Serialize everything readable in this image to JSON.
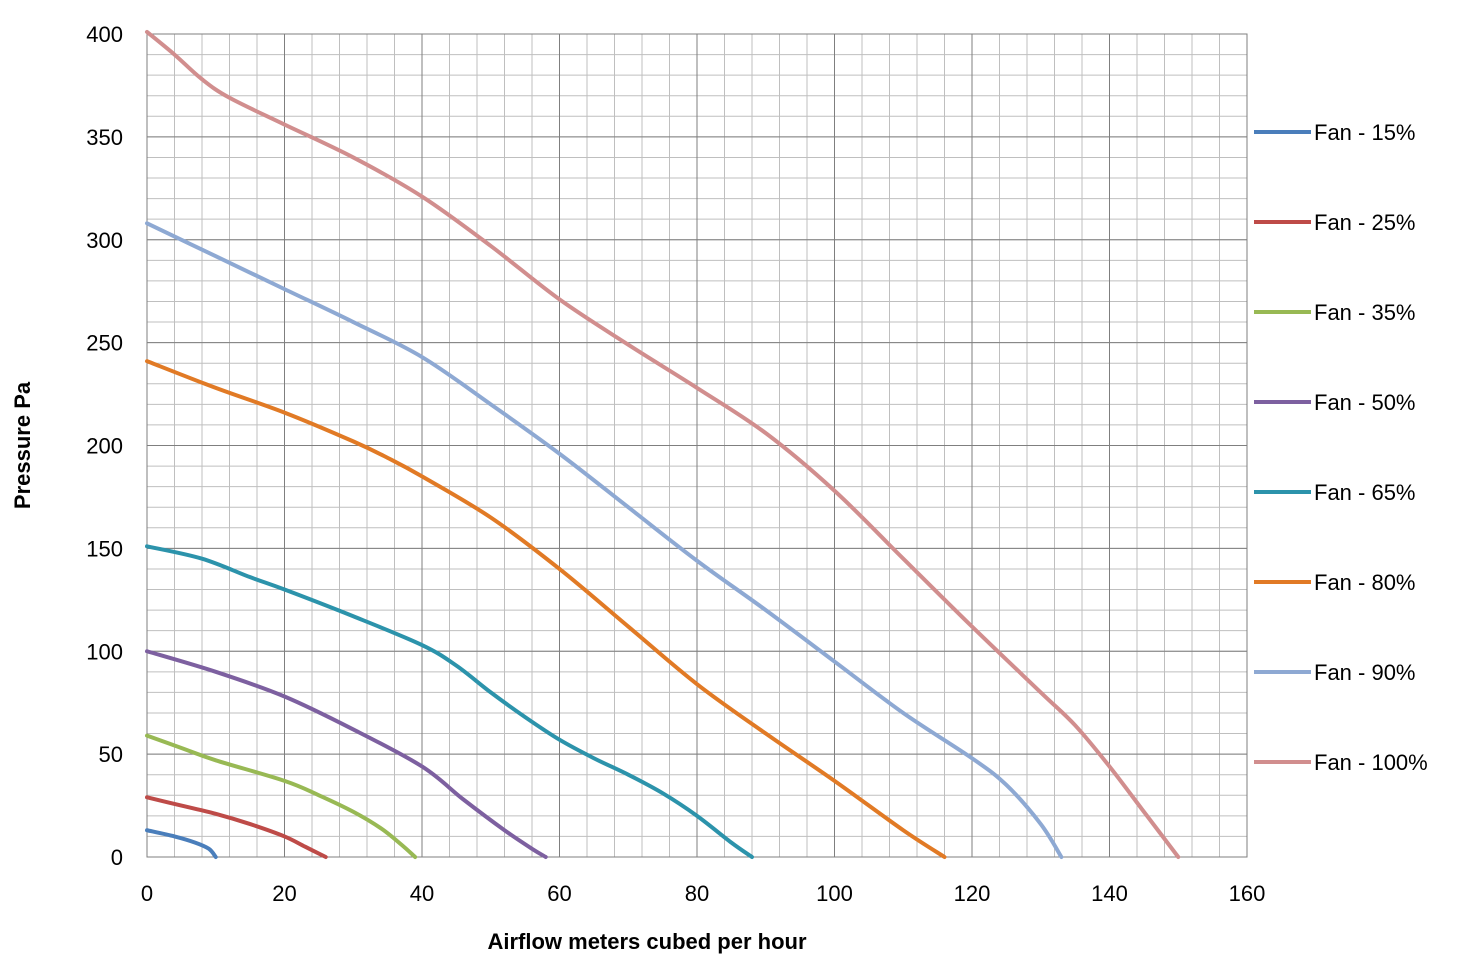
{
  "chart_data": {
    "type": "line",
    "title": "",
    "xlabel": "Airflow meters cubed per hour",
    "ylabel": "Pressure Pa",
    "xlim": [
      0,
      160
    ],
    "ylim": [
      0,
      400
    ],
    "x_ticks": [
      "0",
      "20",
      "40",
      "60",
      "80",
      "100",
      "120",
      "140",
      "160"
    ],
    "y_ticks": [
      "0",
      "50",
      "100",
      "150",
      "200",
      "250",
      "300",
      "350",
      "400"
    ],
    "grid": true,
    "legend_position": "right",
    "series": [
      {
        "name": "Fan - 15%",
        "color": "#4A7EBB",
        "points": [
          [
            0,
            13
          ],
          [
            4,
            10
          ],
          [
            7,
            7
          ],
          [
            9,
            4
          ],
          [
            10,
            0
          ]
        ]
      },
      {
        "name": "Fan - 25%",
        "color": "#BE4B48",
        "points": [
          [
            0,
            29
          ],
          [
            5,
            25
          ],
          [
            10,
            21
          ],
          [
            15,
            16
          ],
          [
            20,
            10
          ],
          [
            23,
            5
          ],
          [
            26,
            0
          ]
        ]
      },
      {
        "name": "Fan - 35%",
        "color": "#98B954",
        "points": [
          [
            0,
            59
          ],
          [
            5,
            53
          ],
          [
            10,
            47
          ],
          [
            20,
            37
          ],
          [
            25,
            30
          ],
          [
            30,
            22
          ],
          [
            34,
            14
          ],
          [
            37,
            6
          ],
          [
            39,
            0
          ]
        ]
      },
      {
        "name": "Fan - 50%",
        "color": "#7D60A0",
        "points": [
          [
            0,
            100
          ],
          [
            10,
            90
          ],
          [
            20,
            78
          ],
          [
            30,
            62
          ],
          [
            40,
            44
          ],
          [
            46,
            28
          ],
          [
            52,
            13
          ],
          [
            56,
            4
          ],
          [
            58,
            0
          ]
        ]
      },
      {
        "name": "Fan - 65%",
        "color": "#2C93AB",
        "points": [
          [
            0,
            151
          ],
          [
            8,
            145
          ],
          [
            15,
            136
          ],
          [
            20,
            130
          ],
          [
            30,
            117
          ],
          [
            40,
            103
          ],
          [
            45,
            93
          ],
          [
            50,
            80
          ],
          [
            55,
            68
          ],
          [
            60,
            57
          ],
          [
            65,
            48
          ],
          [
            70,
            40
          ],
          [
            75,
            31
          ],
          [
            80,
            20
          ],
          [
            85,
            7
          ],
          [
            88,
            0
          ]
        ]
      },
      {
        "name": "Fan - 80%",
        "color": "#E17A25",
        "points": [
          [
            0,
            241
          ],
          [
            10,
            228
          ],
          [
            20,
            216
          ],
          [
            30,
            202
          ],
          [
            35,
            194
          ],
          [
            40,
            185
          ],
          [
            50,
            165
          ],
          [
            60,
            140
          ],
          [
            70,
            112
          ],
          [
            80,
            84
          ],
          [
            90,
            60
          ],
          [
            100,
            37
          ],
          [
            110,
            13
          ],
          [
            116,
            0
          ]
        ]
      },
      {
        "name": "Fan - 90%",
        "color": "#8EA9D3",
        "points": [
          [
            0,
            308
          ],
          [
            10,
            292
          ],
          [
            20,
            276
          ],
          [
            30,
            260
          ],
          [
            40,
            243
          ],
          [
            50,
            220
          ],
          [
            60,
            196
          ],
          [
            70,
            170
          ],
          [
            80,
            144
          ],
          [
            90,
            120
          ],
          [
            100,
            95
          ],
          [
            110,
            70
          ],
          [
            120,
            48
          ],
          [
            125,
            35
          ],
          [
            130,
            16
          ],
          [
            133,
            0
          ]
        ]
      },
      {
        "name": "Fan - 100%",
        "color": "#D18E8E",
        "points": [
          [
            0,
            401
          ],
          [
            4,
            390
          ],
          [
            8,
            378
          ],
          [
            12,
            369
          ],
          [
            20,
            356
          ],
          [
            30,
            340
          ],
          [
            40,
            321
          ],
          [
            50,
            297
          ],
          [
            60,
            271
          ],
          [
            70,
            249
          ],
          [
            80,
            228
          ],
          [
            90,
            206
          ],
          [
            100,
            178
          ],
          [
            110,
            145
          ],
          [
            120,
            112
          ],
          [
            130,
            80
          ],
          [
            135,
            64
          ],
          [
            140,
            44
          ],
          [
            145,
            22
          ],
          [
            150,
            0
          ]
        ]
      }
    ]
  }
}
